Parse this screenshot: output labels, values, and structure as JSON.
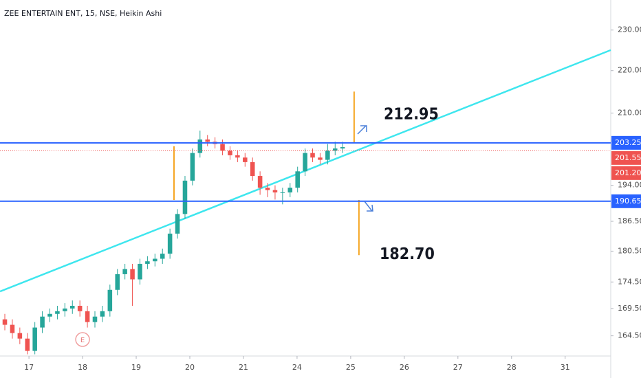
{
  "chart_data": {
    "type": "candlestick",
    "title": "ZEE ENTERTAIN ENT, 15, NSE, Heikin Ashi",
    "log_scale": true,
    "grid": false,
    "up_color": "#26a69a",
    "down_color": "#ef5350",
    "xlim": [
      -0.54,
      10.85
    ],
    "xticks": [
      {
        "value": 0,
        "label": "17"
      },
      {
        "value": 1,
        "label": "18"
      },
      {
        "value": 2,
        "label": "19"
      },
      {
        "value": 3,
        "label": "20"
      },
      {
        "value": 4,
        "label": "21"
      },
      {
        "value": 5,
        "label": "24"
      },
      {
        "value": 6,
        "label": "25"
      },
      {
        "value": 7,
        "label": "26"
      },
      {
        "value": 8,
        "label": "27"
      },
      {
        "value": 9,
        "label": "28"
      },
      {
        "value": 10,
        "label": "31"
      }
    ],
    "ylim": [
      160.9,
      237.7
    ],
    "yticks": [
      {
        "value": 164.5,
        "label": "164.50"
      },
      {
        "value": 169.5,
        "label": "169.50"
      },
      {
        "value": 174.5,
        "label": "174.50"
      },
      {
        "value": 180.5,
        "label": "180.50"
      },
      {
        "value": 186.5,
        "label": "186.50"
      },
      {
        "value": 194,
        "label": "194.00"
      },
      {
        "value": 210,
        "label": "210.00"
      },
      {
        "value": 220,
        "label": "220.00"
      },
      {
        "value": 230,
        "label": "230.00"
      }
    ],
    "x": [
      -0.45,
      -0.31,
      -0.17,
      -0.03,
      0.11,
      0.25,
      0.39,
      0.53,
      0.67,
      0.81,
      0.95,
      1.09,
      1.23,
      1.37,
      1.51,
      1.65,
      1.79,
      1.93,
      2.07,
      2.21,
      2.35,
      2.49,
      2.63,
      2.77,
      2.91,
      3.05,
      3.19,
      3.33,
      3.47,
      3.61,
      3.75,
      3.89,
      4.03,
      4.17,
      4.31,
      4.45,
      4.59,
      4.73,
      4.87,
      5.01,
      5.15,
      5.29,
      5.43,
      5.57,
      5.71,
      5.85
    ],
    "open": [
      167.5,
      166.5,
      165,
      164,
      161.8,
      166,
      168,
      168.5,
      169,
      169.5,
      170,
      169,
      167,
      168,
      169,
      173,
      176,
      177,
      175,
      178,
      178.5,
      179,
      180,
      184,
      188,
      195,
      201,
      204,
      203.5,
      203,
      201.5,
      200.5,
      200,
      199,
      196,
      193.5,
      193,
      192.5,
      192.5,
      193.5,
      197,
      201,
      200,
      199.5,
      201.5,
      202
    ],
    "high": [
      168.5,
      167.5,
      166,
      165,
      167,
      169,
      169.5,
      170,
      170.5,
      171,
      171,
      170,
      169,
      170,
      174,
      177,
      178,
      178,
      179,
      179.5,
      180,
      181,
      185,
      189,
      196,
      202,
      206,
      205,
      204.5,
      204,
      202.5,
      201.5,
      201,
      200,
      197,
      194.5,
      194,
      193.5,
      194.5,
      198,
      202,
      202,
      201,
      203,
      203.5,
      203.5
    ],
    "low": [
      165.5,
      164,
      163,
      161.2,
      161.2,
      165,
      167,
      167.5,
      168,
      168.5,
      168,
      166,
      166,
      167,
      168,
      172,
      175,
      170,
      174,
      177,
      177.5,
      178,
      179,
      183,
      187,
      194,
      200,
      202.5,
      202,
      200.5,
      199.5,
      199,
      198,
      195,
      192,
      191.5,
      191,
      190,
      191.5,
      192.5,
      196,
      199,
      198.5,
      198.5,
      200.5,
      201
    ],
    "close": [
      166.5,
      165,
      164,
      161.8,
      166,
      168,
      168.5,
      169,
      169.5,
      170,
      169,
      167,
      168,
      169,
      173,
      176,
      177,
      175,
      178,
      178.5,
      179,
      180,
      184,
      188,
      195,
      201,
      204,
      203.5,
      203,
      201.5,
      200.5,
      200,
      199,
      196,
      193.5,
      193,
      192.5,
      192.5,
      193.5,
      197,
      201,
      200,
      199.5,
      201.5,
      202,
      202.3
    ],
    "trendline": {
      "color": "#3ee6ee",
      "x": [
        -0.54,
        10.85
      ],
      "values": [
        172.7,
        225
      ]
    },
    "price_labels": [
      {
        "value": 203.25,
        "label": "203.25",
        "color": "#2962ff",
        "line": "solid"
      },
      {
        "value": 201.55,
        "label": "201.55",
        "color": "#ef5350",
        "line": "dotted"
      },
      {
        "value": 201.2,
        "label": "201.20",
        "color": "#ef5350",
        "line": "none"
      },
      {
        "value": 190.65,
        "label": "190.65",
        "color": "#2962ff",
        "line": "solid"
      }
    ],
    "ranges": [
      {
        "x": 2.705,
        "from": 202.5,
        "to": 190.9,
        "color": "#f5a623"
      },
      {
        "x": 6.064,
        "from": 215,
        "to": 203.3,
        "color": "#f5a623"
      },
      {
        "x": 6.154,
        "from": 190.9,
        "to": 179.7,
        "color": "#f5a623"
      }
    ],
    "targets": [
      {
        "value": 212.95,
        "label": "212.95"
      },
      {
        "value": 182.7,
        "label": "182.70"
      }
    ],
    "events": [
      {
        "x": 1,
        "label": "E"
      }
    ]
  }
}
